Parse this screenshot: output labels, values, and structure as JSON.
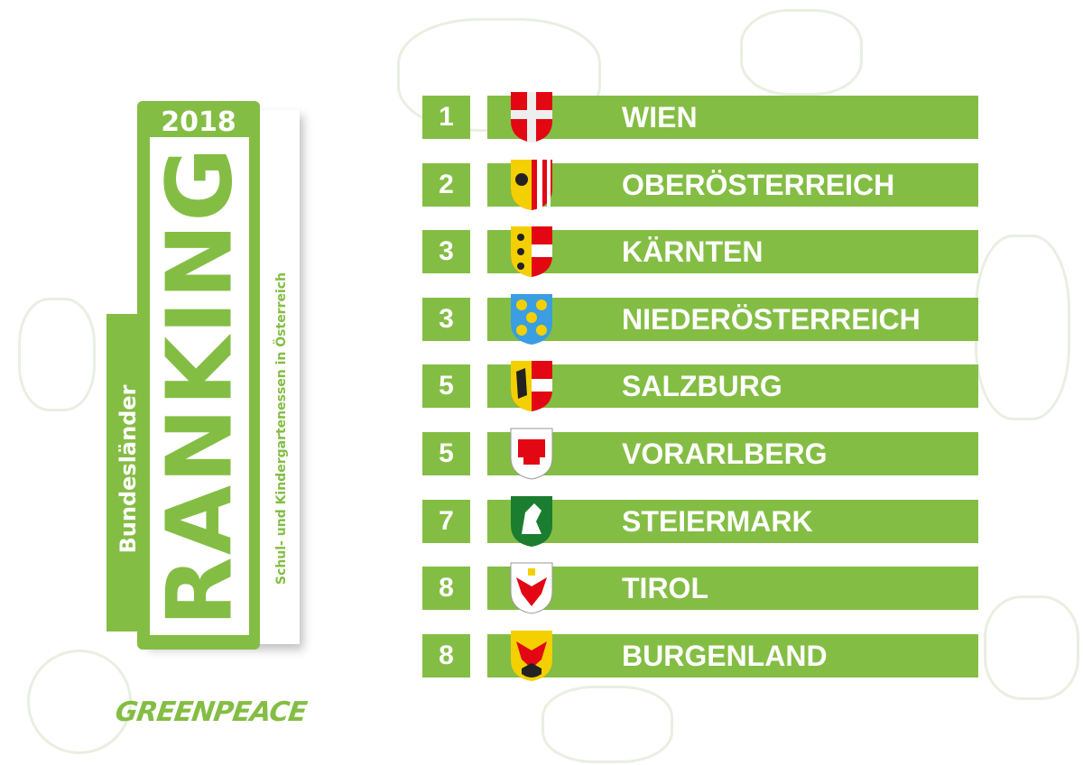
{
  "panel": {
    "year": "2018",
    "title": "RANKING",
    "tab_label": "Bundesländer",
    "subtitle": "Schul- und Kindergartenessen in Österreich",
    "logo": "GREENPEACE"
  },
  "colors": {
    "accent": "#84bd44",
    "background": "#ffffff",
    "text_on_accent": "#ffffff"
  },
  "ranking": [
    {
      "rank": "1",
      "name": "WIEN",
      "crest": "wien-crest"
    },
    {
      "rank": "2",
      "name": "OBERÖSTERREICH",
      "crest": "oberoesterreich-crest"
    },
    {
      "rank": "3",
      "name": "KÄRNTEN",
      "crest": "kaernten-crest"
    },
    {
      "rank": "3",
      "name": "NIEDERÖSTERREICH",
      "crest": "niederoesterreich-crest"
    },
    {
      "rank": "5",
      "name": "SALZBURG",
      "crest": "salzburg-crest"
    },
    {
      "rank": "5",
      "name": "VORARLBERG",
      "crest": "vorarlberg-crest"
    },
    {
      "rank": "7",
      "name": "STEIERMARK",
      "crest": "steiermark-crest"
    },
    {
      "rank": "8",
      "name": "TIROL",
      "crest": "tirol-crest"
    },
    {
      "rank": "8",
      "name": "BURGENLAND",
      "crest": "burgenland-crest"
    }
  ]
}
